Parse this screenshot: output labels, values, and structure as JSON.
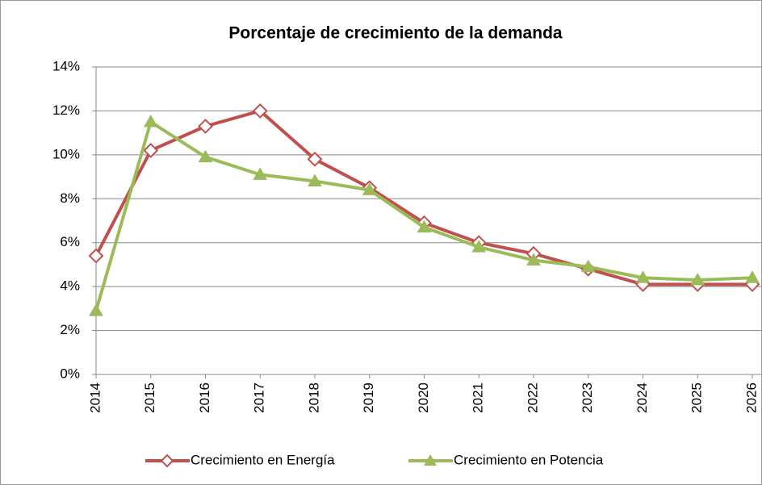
{
  "chart_data": {
    "type": "line",
    "title": "Porcentaje de crecimiento de la demanda",
    "categories": [
      "2014",
      "2015",
      "2016",
      "2017",
      "2018",
      "2019",
      "2020",
      "2021",
      "2022",
      "2023",
      "2024",
      "2025",
      "2026"
    ],
    "series": [
      {
        "name": "Crecimiento en Energía",
        "color": "#c0504d",
        "marker": "diamond",
        "values": [
          5.4,
          10.2,
          11.3,
          12.0,
          9.8,
          8.5,
          6.9,
          6.0,
          5.5,
          4.8,
          4.1,
          4.1,
          4.1
        ]
      },
      {
        "name": "Crecimiento en Potencia",
        "color": "#9bbb59",
        "marker": "triangle",
        "values": [
          2.9,
          11.5,
          9.9,
          9.1,
          8.8,
          8.4,
          6.7,
          5.8,
          5.2,
          4.9,
          4.4,
          4.3,
          4.4
        ]
      }
    ],
    "ylim": [
      0,
      14
    ],
    "yticks": [
      {
        "value": 0,
        "label": "0%"
      },
      {
        "value": 2,
        "label": "2%"
      },
      {
        "value": 4,
        "label": "4%"
      },
      {
        "value": 6,
        "label": "6%"
      },
      {
        "value": 8,
        "label": "8%"
      },
      {
        "value": 10,
        "label": "10%"
      },
      {
        "value": 12,
        "label": "12%"
      },
      {
        "value": 14,
        "label": "14%"
      }
    ],
    "grid": true,
    "legend": "bottom"
  }
}
